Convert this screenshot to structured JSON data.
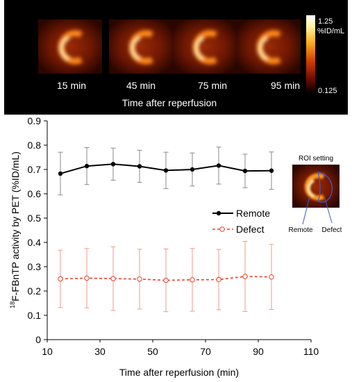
{
  "top_panel": {
    "frame_labels": [
      "15 min",
      "45 min",
      "75 min",
      "95 min"
    ],
    "caption": "Time after reperfusion",
    "colorbar": {
      "max_label": "1.25",
      "unit_label": "%ID/mL",
      "min_label": "0.125"
    },
    "background_color": "#000000"
  },
  "inset": {
    "title": "ROI setting",
    "label_remote": "Remote",
    "label_defect": "Defect"
  },
  "chart_data": {
    "type": "line",
    "title": "",
    "xlabel": "Time after reperfusion (min)",
    "ylabel_prefix": "18",
    "ylabel_main": "F-FBnTP activity by PET (%ID/mL)",
    "xlim": [
      10,
      110
    ],
    "ylim": [
      0,
      0.9
    ],
    "xticks": [
      10,
      30,
      50,
      70,
      90,
      110
    ],
    "yticks": [
      0,
      0.1,
      0.2,
      0.3,
      0.4,
      0.5,
      0.6,
      0.7,
      0.8,
      0.9
    ],
    "x": [
      15,
      25,
      35,
      45,
      55,
      65,
      75,
      85,
      95
    ],
    "series": [
      {
        "name": "Remote",
        "color": "#000000",
        "marker": "filled-circle",
        "line_style": "solid",
        "values": [
          0.683,
          0.714,
          0.722,
          0.713,
          0.696,
          0.7,
          0.716,
          0.694,
          0.695
        ],
        "error": [
          0.088,
          0.076,
          0.066,
          0.066,
          0.075,
          0.068,
          0.076,
          0.069,
          0.077
        ]
      },
      {
        "name": "Defect",
        "color": "#e8412a",
        "marker": "open-circle",
        "line_style": "dashed",
        "values": [
          0.25,
          0.253,
          0.251,
          0.249,
          0.244,
          0.246,
          0.247,
          0.26,
          0.258
        ],
        "error": [
          0.118,
          0.122,
          0.131,
          0.123,
          0.129,
          0.129,
          0.124,
          0.144,
          0.134
        ]
      }
    ],
    "legend_position": "right"
  }
}
